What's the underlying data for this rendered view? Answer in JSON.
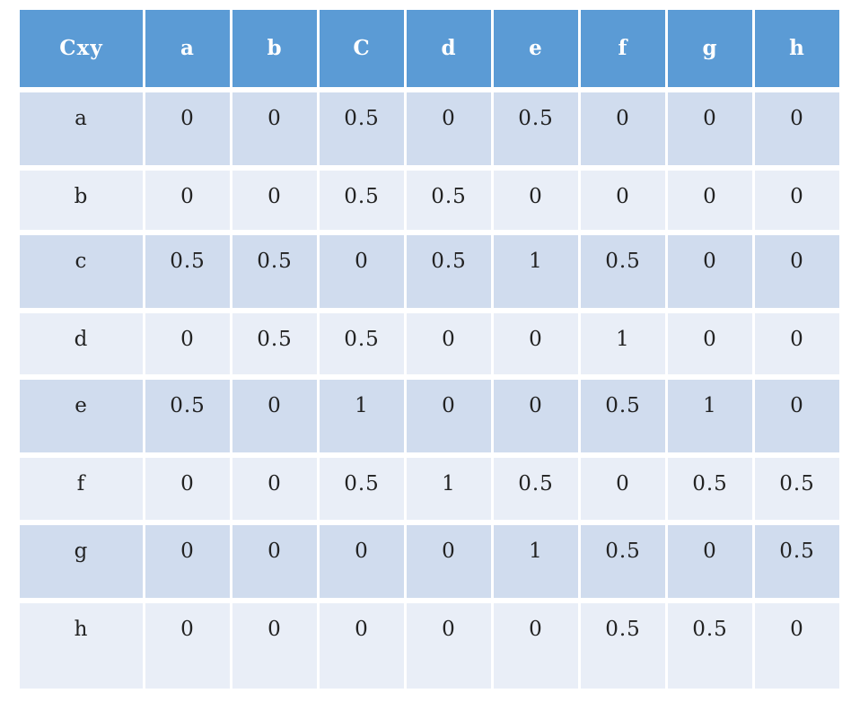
{
  "table": {
    "corner": "Cxy",
    "columns": [
      "a",
      "b",
      "C",
      "d",
      "e",
      "f",
      "g",
      "h"
    ],
    "rows": [
      {
        "label": "a",
        "values": [
          "0",
          "0",
          "0.5",
          "0",
          "0.5",
          "0",
          "0",
          "0"
        ]
      },
      {
        "label": "b",
        "values": [
          "0",
          "0",
          "0.5",
          "0.5",
          "0",
          "0",
          "0",
          "0"
        ]
      },
      {
        "label": "c",
        "values": [
          "0.5",
          "0.5",
          "0",
          "0.5",
          "1",
          "0.5",
          "0",
          "0"
        ]
      },
      {
        "label": "d",
        "values": [
          "0",
          "0.5",
          "0.5",
          "0",
          "0",
          "1",
          "0",
          "0"
        ]
      },
      {
        "label": "e",
        "values": [
          "0.5",
          "0",
          "1",
          "0",
          "0",
          "0.5",
          "1",
          "0"
        ]
      },
      {
        "label": "f",
        "values": [
          "0",
          "0",
          "0.5",
          "1",
          "0.5",
          "0",
          "0.5",
          "0.5"
        ]
      },
      {
        "label": "g",
        "values": [
          "0",
          "0",
          "0",
          "0",
          "1",
          "0.5",
          "0",
          "0.5"
        ]
      },
      {
        "label": "h",
        "values": [
          "0",
          "0",
          "0",
          "0",
          "0",
          "0.5",
          "0.5",
          "0"
        ]
      }
    ],
    "colors": {
      "header_bg": "#5b9bd5",
      "header_text": "#ffffff",
      "row_dark": "#d0dcee",
      "row_light": "#e9eef7",
      "body_text": "#222222"
    }
  }
}
